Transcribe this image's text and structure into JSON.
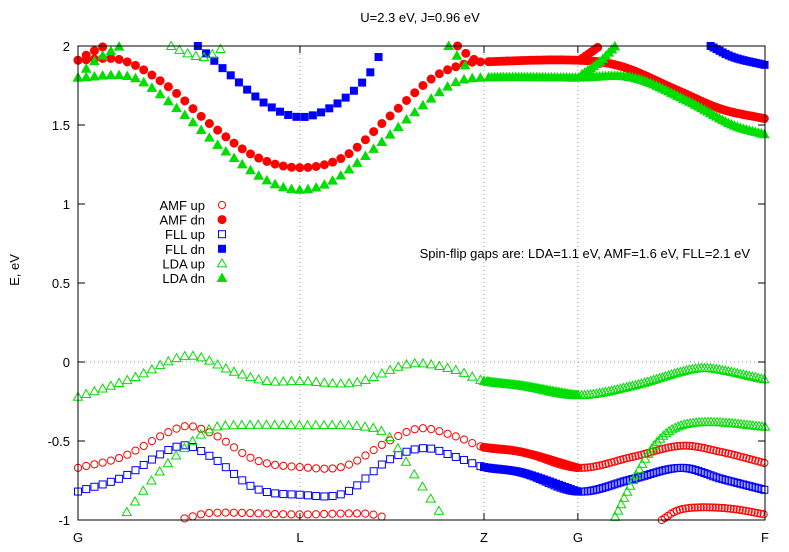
{
  "chart_data": {
    "type": "scatter",
    "title": "U=2.3 eV, J=0.96 eV",
    "ylabel": "E, eV",
    "xlabel": "",
    "ylim": [
      -1,
      2
    ],
    "xlim": [
      0,
      3.095
    ],
    "yticks": [
      {
        "value": 2,
        "label": "2"
      },
      {
        "value": 1.5,
        "label": "1.5"
      },
      {
        "value": 1,
        "label": "1"
      },
      {
        "value": 0.5,
        "label": "0.5"
      },
      {
        "value": 0,
        "label": "0"
      },
      {
        "value": -0.5,
        "label": "-0.5"
      },
      {
        "value": -1,
        "label": "-1"
      }
    ],
    "xticks": [
      {
        "k": 0,
        "label": "G"
      },
      {
        "k": 1.0,
        "label": "L"
      },
      {
        "k": 1.829,
        "label": "Z"
      },
      {
        "k": 2.252,
        "label": "G"
      },
      {
        "k": 3.095,
        "label": "F"
      }
    ],
    "grid": "dotted at E=0 and at L, Z, G",
    "annotation": "Spin-flip gaps are: LDA=1.1 eV, AMF=1.6 eV, FLL=2.1 eV",
    "legend_position": "left-middle",
    "series": [
      {
        "name": "AMF up",
        "color": "#ff0000",
        "marker": "open-circle",
        "bands": [
          [
            [
              0,
              -0.67
            ],
            [
              0.2,
              -0.6
            ],
            [
              0.47,
              -0.41
            ],
            [
              0.6,
              -0.45
            ],
            [
              0.8,
              -0.62
            ],
            [
              1.0,
              -0.665
            ],
            [
              1.2,
              -0.66
            ],
            [
              1.4,
              -0.5
            ],
            [
              1.54,
              -0.42
            ],
            [
              1.7,
              -0.47
            ],
            [
              1.829,
              -0.54
            ],
            [
              2.0,
              -0.57
            ],
            [
              2.252,
              -0.67
            ],
            [
              2.5,
              -0.6
            ],
            [
              2.72,
              -0.53
            ],
            [
              2.9,
              -0.57
            ],
            [
              3.095,
              -0.64
            ]
          ],
          [
            [
              0.48,
              -0.99
            ],
            [
              0.6,
              -0.955
            ],
            [
              1.0,
              -0.965
            ],
            [
              1.3,
              -0.96
            ],
            [
              1.4,
              -0.99
            ]
          ],
          [
            [
              2.63,
              -1.0
            ],
            [
              2.7,
              -0.94
            ],
            [
              2.8,
              -0.92
            ],
            [
              2.95,
              -0.93
            ],
            [
              3.095,
              -0.965
            ]
          ]
        ]
      },
      {
        "name": "AMF dn",
        "color": "#ff0000",
        "marker": "filled-circle",
        "bands": [
          [
            [
              0,
              1.91
            ],
            [
              0.2,
              1.91
            ],
            [
              0.4,
              1.75
            ],
            [
              0.6,
              1.5
            ],
            [
              0.8,
              1.3
            ],
            [
              1.0,
              1.23
            ],
            [
              1.2,
              1.3
            ],
            [
              1.4,
              1.55
            ],
            [
              1.6,
              1.8
            ],
            [
              1.75,
              1.89
            ],
            [
              1.829,
              1.9
            ],
            [
              2.252,
              1.91
            ],
            [
              2.45,
              1.87
            ],
            [
              2.7,
              1.72
            ],
            [
              2.9,
              1.6
            ],
            [
              3.095,
              1.54
            ]
          ],
          [
            [
              0,
              1.91
            ],
            [
              0.06,
              1.96
            ],
            [
              0.12,
              2.0
            ]
          ],
          [
            [
              1.71,
              2.0
            ],
            [
              1.75,
              1.95
            ],
            [
              1.8,
              1.9
            ]
          ],
          [
            [
              2.26,
              1.91
            ],
            [
              2.3,
              1.95
            ],
            [
              2.35,
              2.0
            ]
          ],
          [
            [
              1.829,
              -0.54
            ],
            [
              2.0,
              -0.57
            ],
            [
              2.252,
              -0.67
            ]
          ]
        ]
      },
      {
        "name": "FLL up",
        "color": "#0000ff",
        "marker": "open-square",
        "bands": [
          [
            [
              0,
              -0.82
            ],
            [
              0.2,
              -0.73
            ],
            [
              0.46,
              -0.53
            ],
            [
              0.6,
              -0.6
            ],
            [
              0.8,
              -0.8
            ],
            [
              1.0,
              -0.84
            ],
            [
              1.2,
              -0.83
            ],
            [
              1.4,
              -0.62
            ],
            [
              1.56,
              -0.545
            ],
            [
              1.7,
              -0.6
            ],
            [
              1.829,
              -0.665
            ],
            [
              2.0,
              -0.7
            ],
            [
              2.252,
              -0.82
            ],
            [
              2.5,
              -0.74
            ],
            [
              2.72,
              -0.67
            ],
            [
              2.9,
              -0.74
            ],
            [
              3.095,
              -0.81
            ]
          ]
        ]
      },
      {
        "name": "FLL dn",
        "color": "#0000ff",
        "marker": "filled-square",
        "bands": [
          [
            [
              0.54,
              2.0
            ],
            [
              0.7,
              1.8
            ],
            [
              0.85,
              1.63
            ],
            [
              1.0,
              1.55
            ],
            [
              1.15,
              1.62
            ],
            [
              1.3,
              1.8
            ],
            [
              1.38,
              2.0
            ]
          ],
          [
            [
              2.85,
              2.0
            ],
            [
              2.95,
              1.93
            ],
            [
              3.095,
              1.88
            ]
          ],
          [
            [
              1.829,
              -0.665
            ],
            [
              2.0,
              -0.7
            ],
            [
              2.252,
              -0.82
            ]
          ]
        ]
      },
      {
        "name": "LDA up",
        "color": "#00dd00",
        "marker": "open-triangle",
        "bands": [
          [
            [
              0,
              -0.22
            ],
            [
              0.25,
              -0.1
            ],
            [
              0.5,
              0.04
            ],
            [
              0.7,
              -0.06
            ],
            [
              0.85,
              -0.12
            ],
            [
              1.0,
              -0.12
            ],
            [
              1.25,
              -0.13
            ],
            [
              1.5,
              -0.01
            ],
            [
              1.7,
              -0.05
            ],
            [
              1.829,
              -0.12
            ],
            [
              2.0,
              -0.15
            ],
            [
              2.252,
              -0.21
            ],
            [
              2.5,
              -0.15
            ],
            [
              2.75,
              -0.05
            ],
            [
              2.85,
              -0.04
            ],
            [
              3.095,
              -0.11
            ]
          ],
          [
            [
              0.22,
              -0.95
            ],
            [
              0.35,
              -0.72
            ],
            [
              0.5,
              -0.52
            ],
            [
              0.6,
              -0.42
            ],
            [
              0.7,
              -0.4
            ],
            [
              1.0,
              -0.4
            ],
            [
              1.3,
              -0.41
            ],
            [
              1.4,
              -0.47
            ],
            [
              1.5,
              -0.68
            ],
            [
              1.63,
              -0.95
            ]
          ],
          [
            [
              2.42,
              -0.98
            ],
            [
              2.5,
              -0.75
            ],
            [
              2.6,
              -0.52
            ],
            [
              2.7,
              -0.41
            ],
            [
              2.85,
              -0.38
            ],
            [
              3.095,
              -0.41
            ]
          ],
          [
            [
              0.42,
              2.0
            ],
            [
              0.5,
              1.95
            ],
            [
              0.57,
              1.93
            ],
            [
              0.62,
              1.96
            ],
            [
              0.66,
              2.0
            ]
          ]
        ]
      },
      {
        "name": "LDA dn",
        "color": "#00dd00",
        "marker": "filled-triangle",
        "bands": [
          [
            [
              0,
              1.8
            ],
            [
              0.25,
              1.8
            ],
            [
              0.45,
              1.6
            ],
            [
              0.65,
              1.35
            ],
            [
              0.85,
              1.15
            ],
            [
              1.0,
              1.09
            ],
            [
              1.15,
              1.15
            ],
            [
              1.35,
              1.37
            ],
            [
              1.55,
              1.62
            ],
            [
              1.7,
              1.77
            ],
            [
              1.829,
              1.8
            ],
            [
              2.252,
              1.8
            ],
            [
              2.5,
              1.8
            ],
            [
              2.75,
              1.65
            ],
            [
              2.95,
              1.5
            ],
            [
              3.095,
              1.44
            ]
          ],
          [
            [
              0,
              1.8
            ],
            [
              0.07,
              1.9
            ],
            [
              0.19,
              2.0
            ]
          ],
          [
            [
              1.67,
              2.0
            ],
            [
              1.73,
              1.9
            ],
            [
              1.78,
              1.82
            ]
          ],
          [
            [
              2.27,
              1.82
            ],
            [
              2.35,
              1.9
            ],
            [
              2.42,
              2.0
            ]
          ],
          [
            [
              1.829,
              -0.12
            ],
            [
              2.0,
              -0.15
            ],
            [
              2.252,
              -0.21
            ]
          ]
        ]
      }
    ]
  }
}
